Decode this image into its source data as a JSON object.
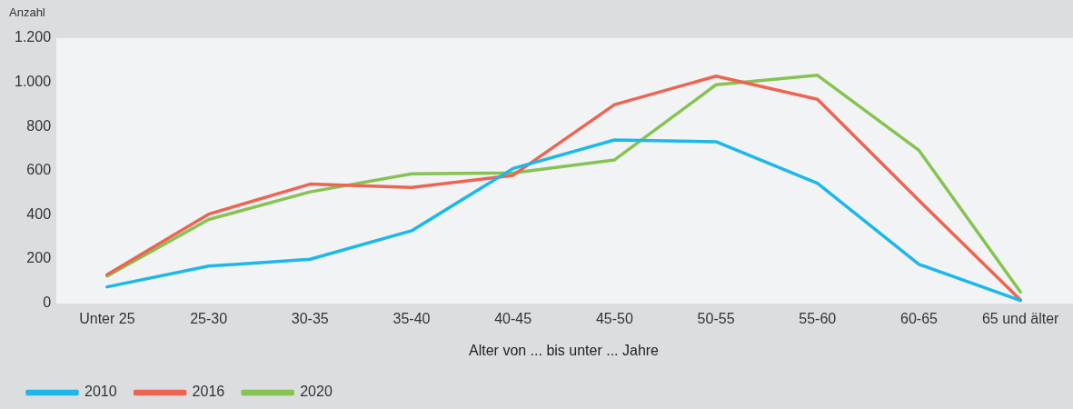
{
  "chart_data": {
    "type": "line",
    "ylabel": "Anzahl",
    "xlabel": "Alter von ... bis unter ... Jahre",
    "categories": [
      "Unter 25",
      "25-30",
      "30-35",
      "35-40",
      "40-45",
      "45-50",
      "50-55",
      "55-60",
      "60-65",
      "65 und älter"
    ],
    "series": [
      {
        "name": "2010",
        "color": "#1cb8ea",
        "values": [
          74,
          168,
          199,
          328,
          610,
          739,
          731,
          543,
          176,
          12
        ]
      },
      {
        "name": "2016",
        "color": "#ee6452",
        "values": [
          129,
          403,
          539,
          524,
          579,
          899,
          1028,
          923,
          465,
          15
        ]
      },
      {
        "name": "2020",
        "color": "#86c352",
        "values": [
          123,
          379,
          504,
          586,
          590,
          649,
          989,
          1032,
          692,
          51
        ]
      }
    ],
    "ylim": [
      0,
      1200
    ],
    "yticks": [
      0,
      200,
      400,
      600,
      800,
      {
        "value": 1000,
        "label": "1.000"
      },
      {
        "value": 1200,
        "label": "1.200"
      }
    ],
    "grid": false,
    "legend": "bottom left",
    "marker": "none",
    "line_style": "solid"
  }
}
